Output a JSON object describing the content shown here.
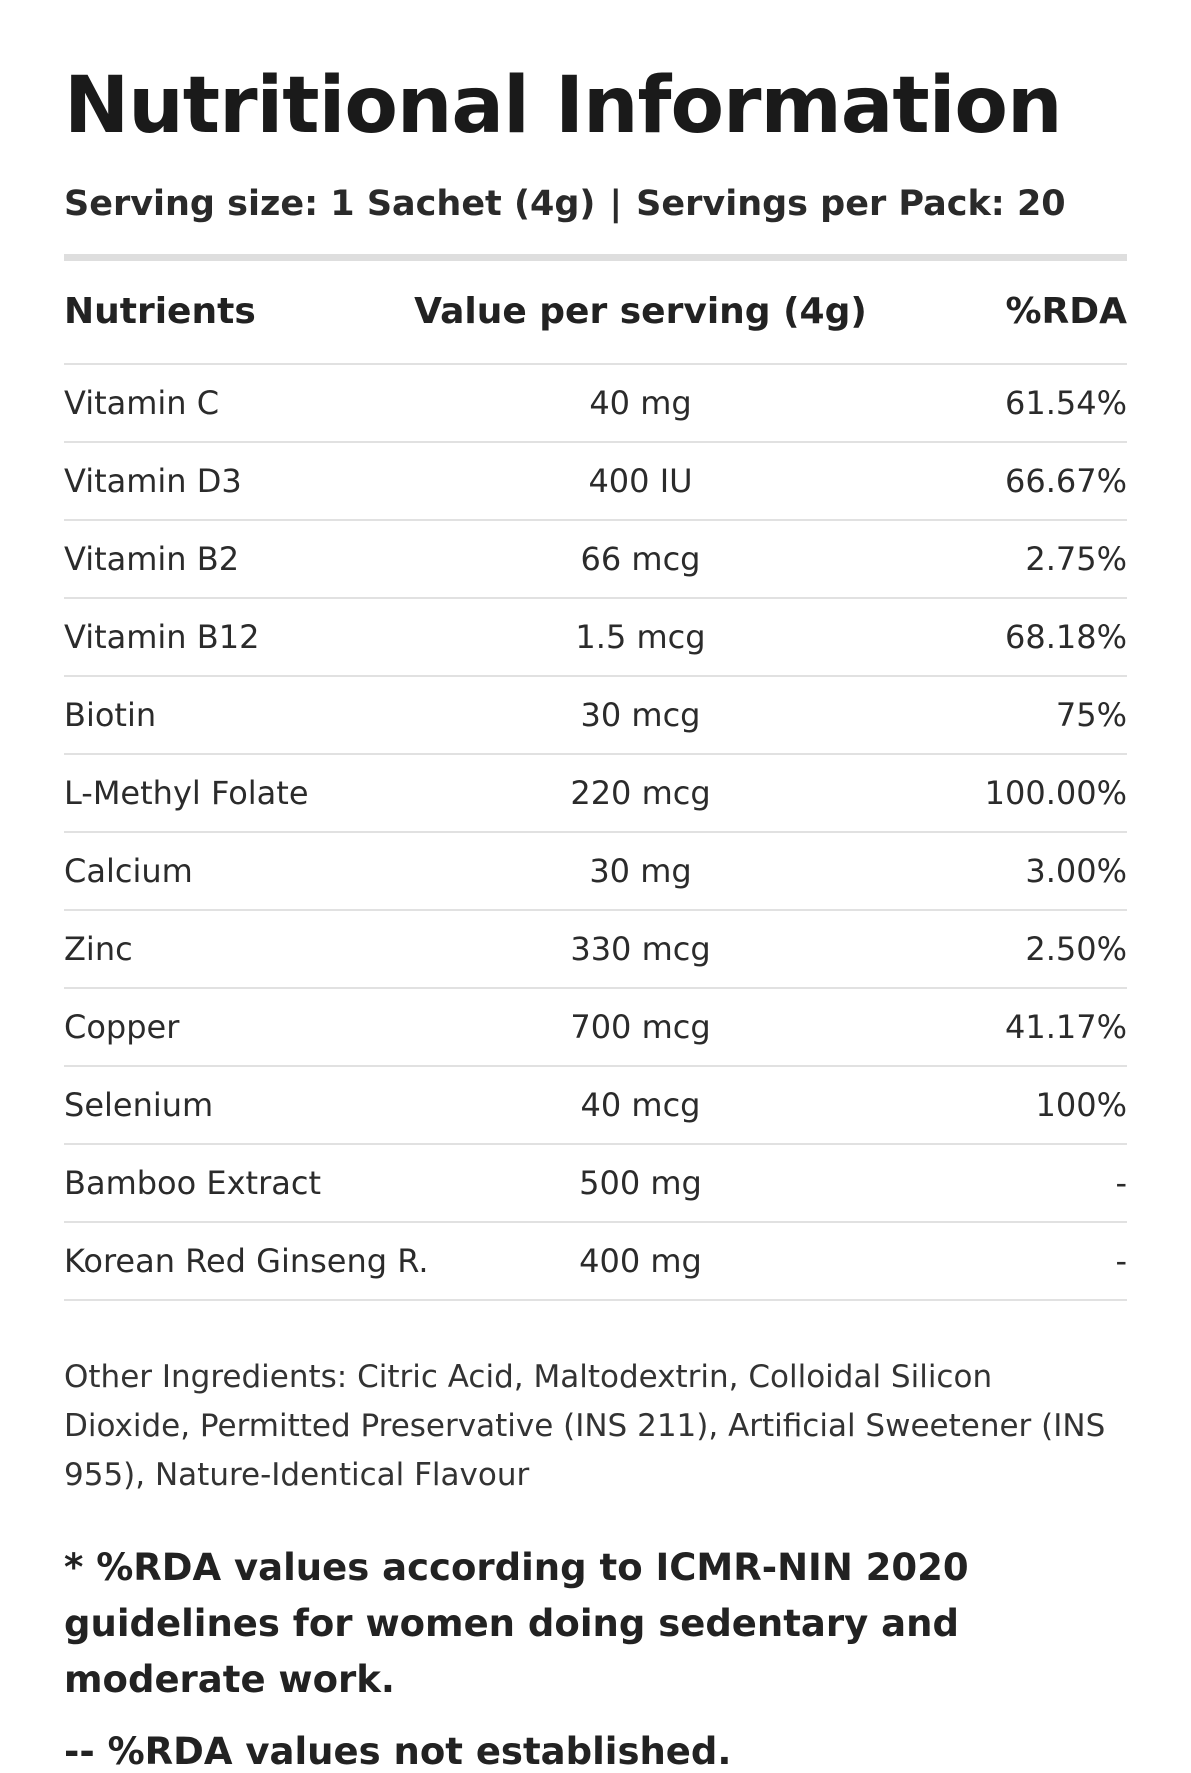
{
  "title": "Nutritional Information",
  "serving": {
    "size": "Serving size: 1 Sachet (4g)",
    "separator": "|",
    "per_pack": "Servings per Pack: 20"
  },
  "table": {
    "headers": [
      "Nutrients",
      "Value per serving (4g)",
      "%RDA"
    ],
    "rows": [
      [
        "Vitamin C",
        "40 mg",
        "61.54%"
      ],
      [
        "Vitamin D3",
        "400 IU",
        "66.67%"
      ],
      [
        "Vitamin B2",
        "66 mcg",
        "2.75%"
      ],
      [
        "Vitamin B12",
        "1.5 mcg",
        "68.18%"
      ],
      [
        "Biotin",
        "30 mcg",
        "75%"
      ],
      [
        "L-Methyl Folate",
        "220 mcg",
        "100.00%"
      ],
      [
        "Calcium",
        "30 mg",
        "3.00%"
      ],
      [
        "Zinc",
        "330 mcg",
        "2.50%"
      ],
      [
        "Copper",
        "700 mcg",
        "41.17%"
      ],
      [
        "Selenium",
        "40 mcg",
        "100%"
      ],
      [
        "Bamboo Extract",
        "500 mg",
        "-"
      ],
      [
        "Korean Red Ginseng R.",
        "400 mg",
        "-"
      ]
    ]
  },
  "other_ingredients": "Other Ingredients: Citric Acid, Maltodextrin, Colloidal Silicon Dioxide, Permitted Preservative (INS 211), Artificial Sweetener (INS 955), Nature-Identical Flavour",
  "footnote_rda": "* %RDA values according to ICMR-NIN 2020 guidelines for women doing sedentary and moderate work.",
  "footnote_not_established": "-- %RDA values not established."
}
